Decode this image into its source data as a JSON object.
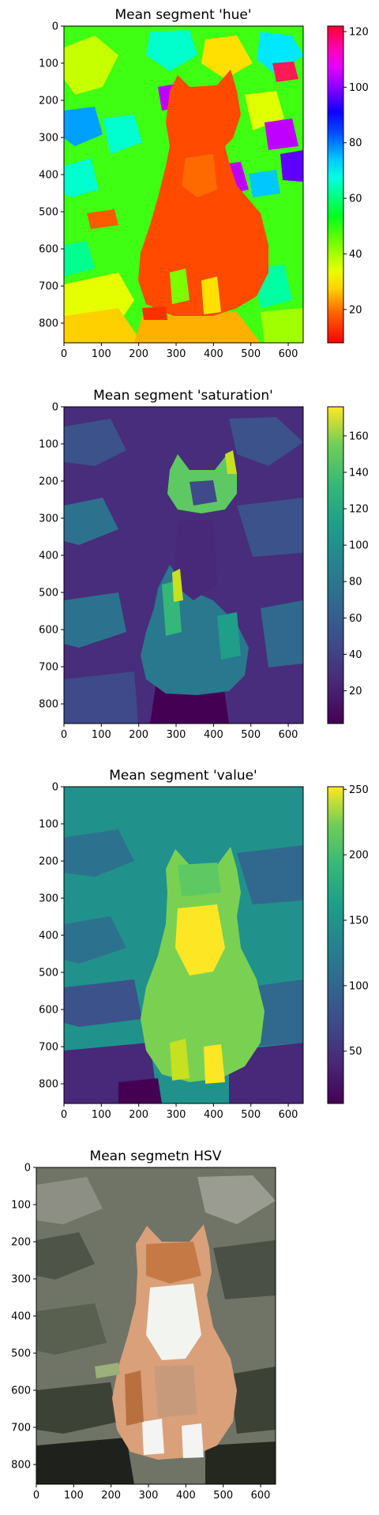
{
  "chart_data": [
    {
      "type": "heatmap",
      "title": "Mean segment 'hue'",
      "colormap": "hsv",
      "xlim": [
        0,
        640
      ],
      "ylim": [
        0,
        853
      ],
      "xticks": [
        "0",
        "100",
        "200",
        "300",
        "400",
        "500",
        "600"
      ],
      "yticks": [
        "0",
        "100",
        "200",
        "300",
        "400",
        "500",
        "600",
        "700",
        "800"
      ],
      "colorbar": {
        "range": [
          8,
          122
        ],
        "ticks": [
          "20",
          "40",
          "60",
          "80",
          "100",
          "120"
        ]
      }
    },
    {
      "type": "heatmap",
      "title": "Mean segment 'saturation'",
      "colormap": "viridis",
      "xlim": [
        0,
        640
      ],
      "ylim": [
        0,
        853
      ],
      "xticks": [
        "0",
        "100",
        "200",
        "300",
        "400",
        "500",
        "600"
      ],
      "yticks": [
        "0",
        "100",
        "200",
        "300",
        "400",
        "500",
        "600",
        "700",
        "800"
      ],
      "colorbar": {
        "range": [
          2,
          176
        ],
        "ticks": [
          "20",
          "40",
          "60",
          "80",
          "100",
          "120",
          "140",
          "160"
        ]
      }
    },
    {
      "type": "heatmap",
      "title": "Mean segment 'value'",
      "colormap": "viridis",
      "xlim": [
        0,
        640
      ],
      "ylim": [
        0,
        853
      ],
      "xticks": [
        "0",
        "100",
        "200",
        "300",
        "400",
        "500",
        "600"
      ],
      "yticks": [
        "0",
        "100",
        "200",
        "300",
        "400",
        "500",
        "600",
        "700",
        "800"
      ],
      "colorbar": {
        "range": [
          10,
          252
        ],
        "ticks": [
          "50",
          "100",
          "150",
          "200",
          "250"
        ]
      }
    },
    {
      "type": "heatmap",
      "title": "Mean segmetn HSV",
      "colormap": "rgb",
      "xlim": [
        0,
        640
      ],
      "ylim": [
        0,
        853
      ],
      "xticks": [
        "0",
        "100",
        "200",
        "300",
        "400",
        "500",
        "600"
      ],
      "yticks": [
        "0",
        "100",
        "200",
        "300",
        "400",
        "500",
        "600",
        "700",
        "800"
      ]
    }
  ]
}
